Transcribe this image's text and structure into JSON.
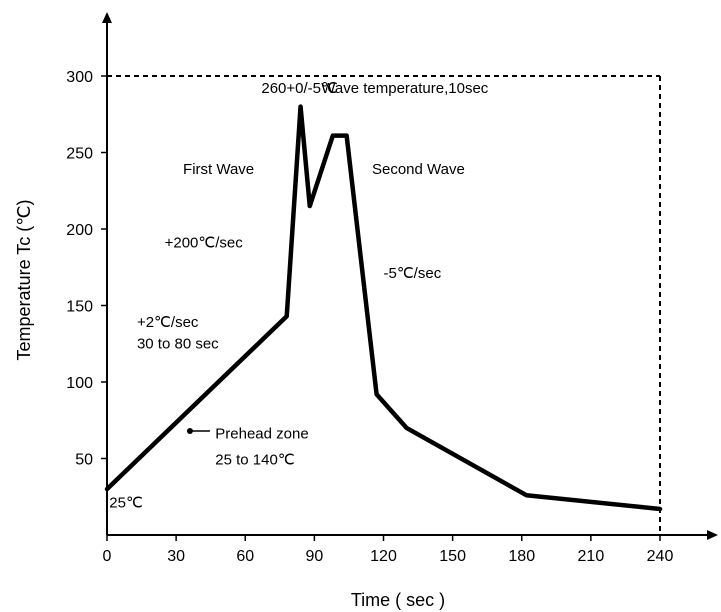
{
  "chart_data": {
    "type": "line",
    "xlabel": "Time ( sec )",
    "ylabel": "Temperature Tc (℃)",
    "xlim": [
      0,
      240
    ],
    "ylim": [
      0,
      300
    ],
    "xticks": [
      0,
      30,
      60,
      90,
      120,
      150,
      180,
      210,
      240
    ],
    "yticks": [
      50,
      100,
      150,
      200,
      250,
      300
    ],
    "grid": false,
    "boundary_box": {
      "x": [
        0,
        240
      ],
      "y": [
        0,
        300
      ],
      "style": "dashed"
    },
    "series": [
      {
        "x": [
          0,
          78,
          84,
          88,
          98,
          104,
          117,
          130,
          182,
          240
        ],
        "y": [
          30,
          143,
          280,
          215,
          261,
          261,
          92,
          70,
          26,
          17
        ]
      }
    ],
    "annotations": [
      {
        "text": "260+0/-5℃",
        "x": 67,
        "y": 289
      },
      {
        "text": "Wave temperature,10sec",
        "x": 93,
        "y": 289
      },
      {
        "text": "First Wave",
        "x": 33,
        "y": 236
      },
      {
        "text": "Second Wave",
        "x": 115,
        "y": 236
      },
      {
        "text": "+200℃/sec",
        "x": 25,
        "y": 188
      },
      {
        "text": "-5℃/sec",
        "x": 120,
        "y": 168
      },
      {
        "text": "+2℃/sec",
        "x": 13,
        "y": 136
      },
      {
        "text": "30  to 80 sec",
        "x": 13,
        "y": 122
      },
      {
        "text": "Prehead zone",
        "x": 47,
        "y": 63
      },
      {
        "text": "25 to 140℃",
        "x": 47,
        "y": 46
      },
      {
        "text": "25℃",
        "x": 1,
        "y": 18
      }
    ],
    "marker_point": {
      "x": 36,
      "y": 68
    }
  }
}
